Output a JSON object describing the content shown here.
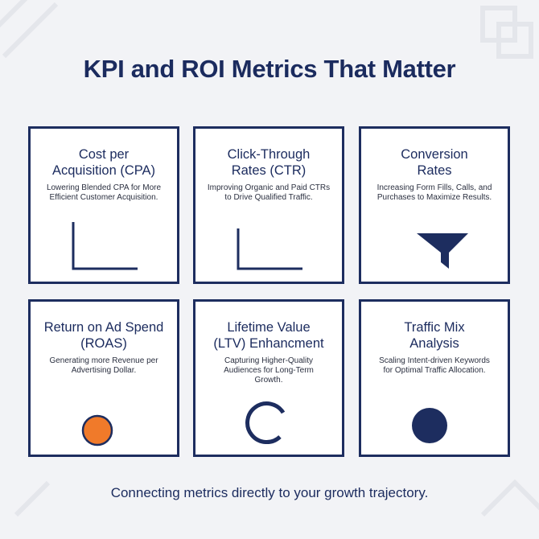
{
  "title": "KPI and ROI Metrics That Matter",
  "cards": [
    {
      "title": [
        "Cost per",
        "Acquisition (CPA)"
      ],
      "description": [
        "Lowering Blended CPA for More",
        "Efficient Customer Acquisition."
      ]
    },
    {
      "title": [
        "Click-Through",
        "Rates (CTR)"
      ],
      "description": [
        "Improving Organic and Paid CTRs",
        "to Drive Qualified Traffic."
      ]
    },
    {
      "title": [
        "Conversion",
        "Rates"
      ],
      "description": [
        "Increasing Form Fills, Calls, and",
        "Purchases to Maximize Results."
      ]
    },
    {
      "title": [
        "Return on Ad Spend",
        "(ROAS)"
      ],
      "description": [
        "Generating more Revenue per",
        "Advertising Dollar."
      ]
    },
    {
      "title": [
        "Lifetime Value",
        "(LTV) Enhancment"
      ],
      "description": [
        "Capturing Higher-Quality",
        "Audiences for Long-Term",
        "Growth."
      ]
    },
    {
      "title": [
        "Traffic Mix",
        "Analysis"
      ],
      "description": [
        "Scaling Intent-driven Keywords",
        "for Optimal Traffic Allocation."
      ]
    }
  ],
  "footer": "Connecting metrics directly to your growth trajectory."
}
